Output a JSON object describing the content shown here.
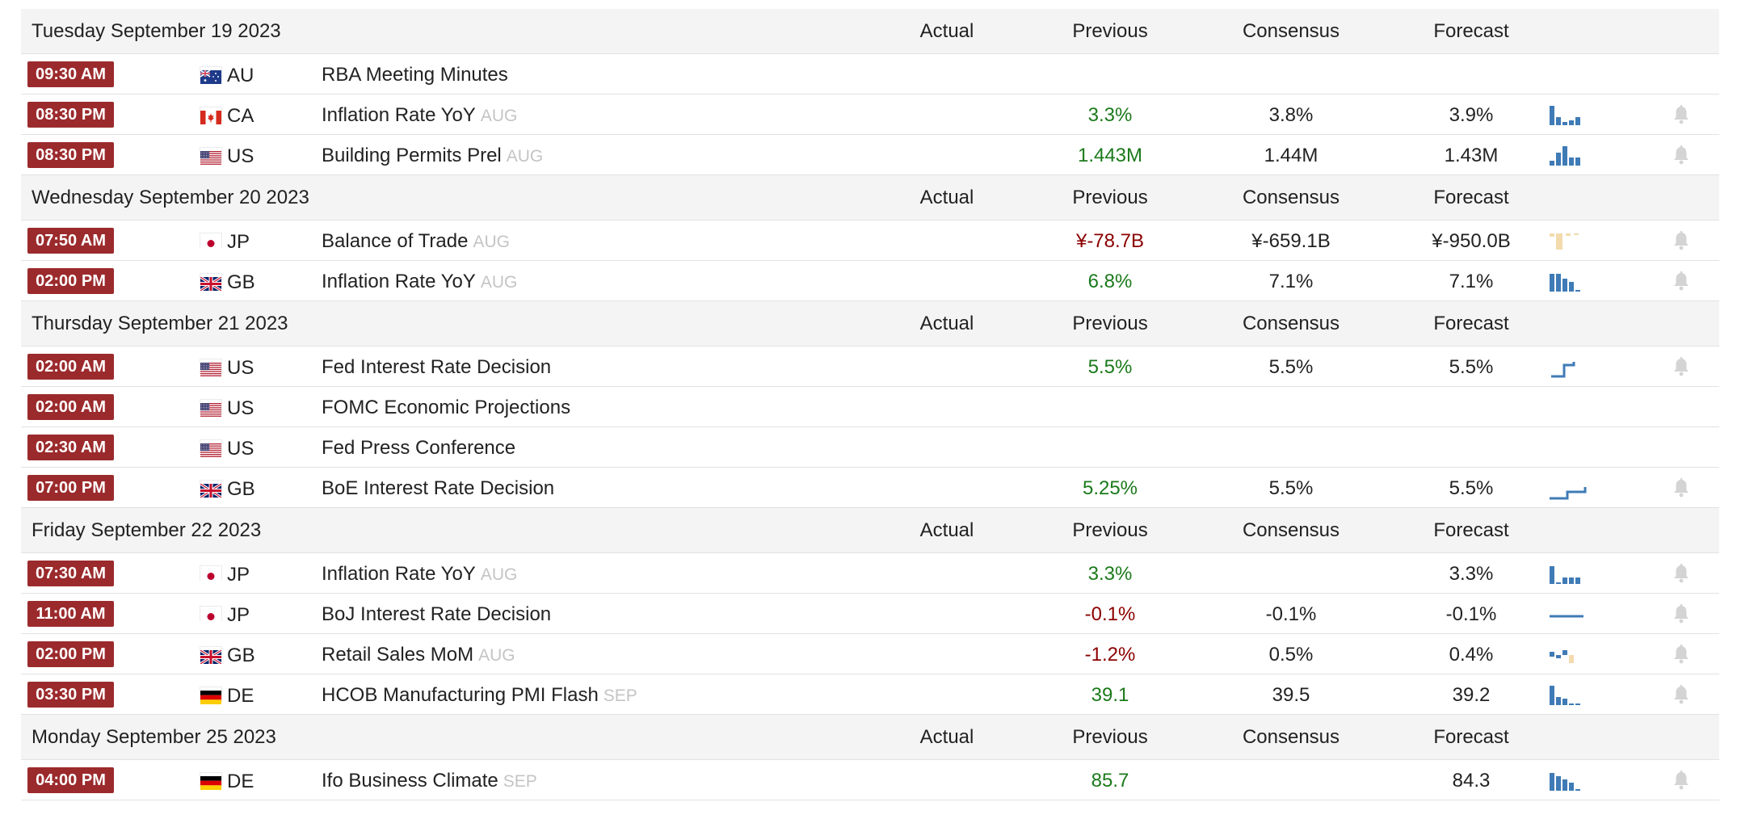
{
  "columns": {
    "actual": "Actual",
    "previous": "Previous",
    "consensus": "Consensus",
    "forecast": "Forecast"
  },
  "colors": {
    "time_badge": "#9b2a2c",
    "positive": "#1b7a1b",
    "negative": "#8b0000",
    "sparkline_blue": "#3f7bb6",
    "sparkline_tan": "#f3dbae",
    "bell": "#d4d4d4"
  },
  "days": [
    {
      "date": "Tuesday September 19 2023",
      "events": [
        {
          "time": "09:30 AM",
          "flag": "au-flag-icon",
          "country": "AU",
          "event": "RBA Meeting Minutes",
          "ref": "",
          "actual": "",
          "previous": "",
          "previous_trend": "",
          "consensus": "",
          "forecast": "",
          "sparkline": "",
          "bell": false
        },
        {
          "time": "08:30 PM",
          "flag": "ca-flag-icon",
          "country": "CA",
          "event": "Inflation Rate YoY",
          "ref": "AUG",
          "actual": "",
          "previous": "3.3%",
          "previous_trend": "pos",
          "consensus": "3.8%",
          "forecast": "3.9%",
          "sparkline": "bars-a",
          "bell": true
        },
        {
          "time": "08:30 PM",
          "flag": "us-flag-icon",
          "country": "US",
          "event": "Building Permits Prel",
          "ref": "AUG",
          "actual": "",
          "previous": "1.443M",
          "previous_trend": "pos",
          "consensus": "1.44M",
          "forecast": "1.43M",
          "sparkline": "bars-b",
          "bell": true
        }
      ]
    },
    {
      "date": "Wednesday September 20 2023",
      "events": [
        {
          "time": "07:50 AM",
          "flag": "jp-flag-icon",
          "country": "JP",
          "event": "Balance of Trade",
          "ref": "AUG",
          "actual": "",
          "previous": "¥-78.7B",
          "previous_trend": "neg",
          "consensus": "¥-659.1B",
          "forecast": "¥-950.0B",
          "sparkline": "tan-bars",
          "bell": true
        },
        {
          "time": "02:00 PM",
          "flag": "gb-flag-icon",
          "country": "GB",
          "event": "Inflation Rate YoY",
          "ref": "AUG",
          "actual": "",
          "previous": "6.8%",
          "previous_trend": "pos",
          "consensus": "7.1%",
          "forecast": "7.1%",
          "sparkline": "bars-c",
          "bell": true
        }
      ]
    },
    {
      "date": "Thursday September 21 2023",
      "events": [
        {
          "time": "02:00 AM",
          "flag": "us-flag-icon",
          "country": "US",
          "event": "Fed Interest Rate Decision",
          "ref": "",
          "actual": "",
          "previous": "5.5%",
          "previous_trend": "pos",
          "consensus": "5.5%",
          "forecast": "5.5%",
          "sparkline": "step-a",
          "bell": true
        },
        {
          "time": "02:00 AM",
          "flag": "us-flag-icon",
          "country": "US",
          "event": "FOMC Economic Projections",
          "ref": "",
          "actual": "",
          "previous": "",
          "previous_trend": "",
          "consensus": "",
          "forecast": "",
          "sparkline": "",
          "bell": false
        },
        {
          "time": "02:30 AM",
          "flag": "us-flag-icon",
          "country": "US",
          "event": "Fed Press Conference",
          "ref": "",
          "actual": "",
          "previous": "",
          "previous_trend": "",
          "consensus": "",
          "forecast": "",
          "sparkline": "",
          "bell": false
        },
        {
          "time": "07:00 PM",
          "flag": "gb-flag-icon",
          "country": "GB",
          "event": "BoE Interest Rate Decision",
          "ref": "",
          "actual": "",
          "previous": "5.25%",
          "previous_trend": "pos",
          "consensus": "5.5%",
          "forecast": "5.5%",
          "sparkline": "step-b",
          "bell": true
        }
      ]
    },
    {
      "date": "Friday September 22 2023",
      "events": [
        {
          "time": "07:30 AM",
          "flag": "jp-flag-icon",
          "country": "JP",
          "event": "Inflation Rate YoY",
          "ref": "AUG",
          "actual": "",
          "previous": "3.3%",
          "previous_trend": "pos",
          "consensus": "",
          "forecast": "3.3%",
          "sparkline": "bars-d",
          "bell": true
        },
        {
          "time": "11:00 AM",
          "flag": "jp-flag-icon",
          "country": "JP",
          "event": "BoJ Interest Rate Decision",
          "ref": "",
          "actual": "",
          "previous": "-0.1%",
          "previous_trend": "neg",
          "consensus": "-0.1%",
          "forecast": "-0.1%",
          "sparkline": "flat",
          "bell": true
        },
        {
          "time": "02:00 PM",
          "flag": "gb-flag-icon",
          "country": "GB",
          "event": "Retail Sales MoM",
          "ref": "AUG",
          "actual": "",
          "previous": "-1.2%",
          "previous_trend": "neg",
          "consensus": "0.5%",
          "forecast": "0.4%",
          "sparkline": "mixed",
          "bell": true
        },
        {
          "time": "03:30 PM",
          "flag": "de-flag-icon",
          "country": "DE",
          "event": "HCOB Manufacturing PMI Flash",
          "ref": "SEP",
          "actual": "",
          "previous": "39.1",
          "previous_trend": "pos",
          "consensus": "39.5",
          "forecast": "39.2",
          "sparkline": "bars-e",
          "bell": true
        }
      ]
    },
    {
      "date": "Monday September 25 2023",
      "events": [
        {
          "time": "04:00 PM",
          "flag": "de-flag-icon",
          "country": "DE",
          "event": "Ifo Business Climate",
          "ref": "SEP",
          "actual": "",
          "previous": "85.7",
          "previous_trend": "pos",
          "consensus": "",
          "forecast": "84.3",
          "sparkline": "bars-f",
          "bell": true
        }
      ]
    }
  ]
}
